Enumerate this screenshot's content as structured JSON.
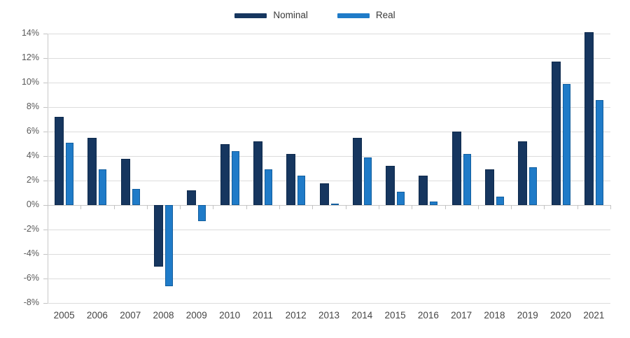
{
  "legend": {
    "items": [
      {
        "label": "Nominal",
        "color": "#16365f",
        "border_color": "#0e2a4d"
      },
      {
        "label": "Real",
        "color": "#1f7bc8",
        "border_color": "#125e9e"
      }
    ]
  },
  "chart_data": {
    "type": "bar",
    "title": "",
    "xlabel": "",
    "ylabel": "",
    "categories": [
      "2005",
      "2006",
      "2007",
      "2008",
      "2009",
      "2010",
      "2011",
      "2012",
      "2013",
      "2014",
      "2015",
      "2016",
      "2017",
      "2018",
      "2019",
      "2020",
      "2021"
    ],
    "series": [
      {
        "name": "Nominal",
        "color": "#16365f",
        "border_color": "#0e2a4d",
        "values": [
          7.2,
          5.5,
          3.8,
          -5.0,
          1.2,
          5.0,
          5.2,
          4.2,
          1.8,
          5.5,
          3.2,
          2.4,
          6.0,
          2.9,
          5.2,
          11.7,
          14.1
        ]
      },
      {
        "name": "Real",
        "color": "#1f7bc8",
        "border_color": "#125e9e",
        "values": [
          5.1,
          2.9,
          1.3,
          -6.6,
          -1.3,
          4.4,
          2.9,
          2.4,
          0.1,
          3.9,
          1.1,
          0.3,
          4.2,
          0.7,
          3.1,
          9.9,
          8.6
        ]
      }
    ],
    "y_ticks": [
      14,
      12,
      10,
      8,
      6,
      4,
      2,
      0,
      -2,
      -4,
      -6,
      -8
    ],
    "y_tick_suffix": "%",
    "ylim": [
      -8,
      14
    ],
    "grid": "horizontal-only",
    "legend_position": "top-center"
  },
  "colors": {
    "background": "#ffffff",
    "gridline": "#dcdcdc",
    "axis_line": "#c9c9c9",
    "tick": "#c3c3c3",
    "y_label_text": "#595959",
    "x_label_text": "#454545",
    "legend_text": "#3a3a3a"
  }
}
